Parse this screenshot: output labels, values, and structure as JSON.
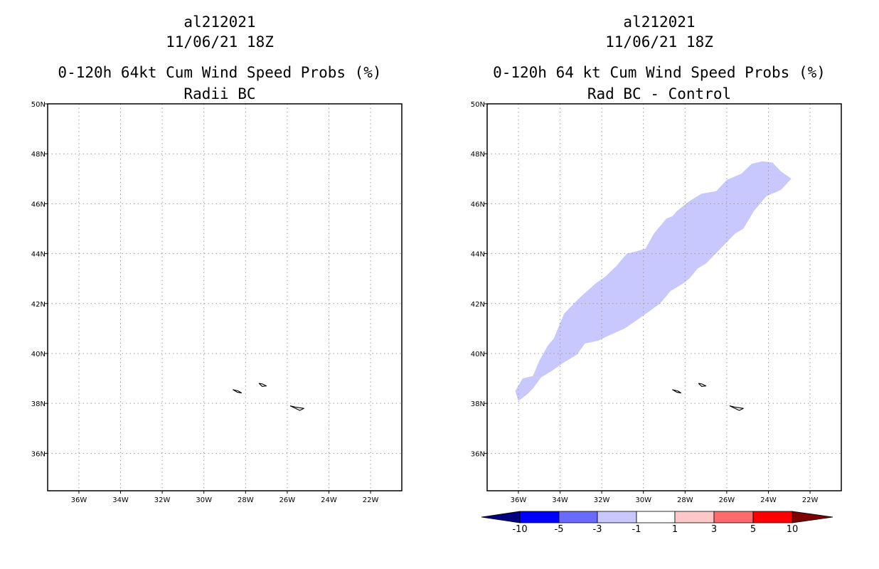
{
  "panels": [
    {
      "title_line1": "al212021",
      "title_line2": "11/06/21 18Z",
      "title_line3": "0-120h 64kt Cum Wind Speed Probs (%)",
      "title_line4": "Radii BC"
    },
    {
      "title_line1": "al212021",
      "title_line2": "11/06/21 18Z",
      "title_line3": "0-120h 64 kt Cum Wind Speed Probs (%)",
      "title_line4": "Rad BC - Control"
    }
  ],
  "map": {
    "lon_range": [
      -37.5,
      -20.5
    ],
    "lat_range": [
      34.5,
      50
    ],
    "lon_ticks": [
      -36,
      -34,
      -32,
      -30,
      -28,
      -26,
      -24,
      -22
    ],
    "lon_labels": [
      "36W",
      "34W",
      "32W",
      "30W",
      "28W",
      "26W",
      "24W",
      "22W"
    ],
    "lat_ticks": [
      36,
      38,
      40,
      42,
      44,
      46,
      48,
      50
    ],
    "lat_labels": [
      "36N",
      "38N",
      "40N",
      "42N",
      "44N",
      "46N",
      "48N",
      "50N"
    ],
    "islands": [
      {
        "name": "flores",
        "lon": [
          -28.6,
          -28.35,
          -28.2,
          -28.4
        ],
        "lat": [
          38.55,
          38.5,
          38.42,
          38.45
        ]
      },
      {
        "name": "faial-pico",
        "lon": [
          -27.35,
          -27.2,
          -27.0,
          -27.2
        ],
        "lat": [
          38.8,
          38.78,
          38.7,
          38.68
        ]
      },
      {
        "name": "sao-miguel",
        "lon": [
          -25.85,
          -25.6,
          -25.2,
          -25.4
        ],
        "lat": [
          37.9,
          37.85,
          37.8,
          37.72
        ]
      }
    ]
  },
  "probability_band": {
    "value_class": "-3 to -1",
    "color": "#c8c8ff",
    "lon": [
      -36.15,
      -35.8,
      -35.3,
      -35.0,
      -34.6,
      -34.3,
      -33.8,
      -33.1,
      -32.3,
      -31.8,
      -31.3,
      -30.8,
      -30.3,
      -29.9,
      -29.5,
      -28.9,
      -28.6,
      -28.4,
      -27.8,
      -27.2,
      -26.5,
      -26.0,
      -25.3,
      -24.8,
      -24.3,
      -23.8,
      -23.4,
      -22.9,
      -23.4,
      -24.1,
      -24.7,
      -25.2,
      -25.6,
      -26.3,
      -27.0,
      -27.4,
      -27.8,
      -28.1,
      -28.7,
      -29.2,
      -29.7,
      -30.2,
      -30.9,
      -31.7,
      -32.2,
      -32.8,
      -33.2,
      -33.8,
      -34.4,
      -34.9,
      -35.3,
      -35.6,
      -36.0
    ],
    "lat": [
      38.5,
      39.0,
      39.1,
      39.7,
      40.3,
      40.6,
      41.6,
      42.2,
      42.8,
      43.1,
      43.5,
      44.0,
      44.1,
      44.2,
      44.8,
      45.4,
      45.5,
      45.7,
      46.1,
      46.4,
      46.5,
      46.95,
      47.2,
      47.6,
      47.7,
      47.65,
      47.3,
      47.0,
      46.55,
      46.3,
      45.7,
      45.0,
      44.8,
      44.2,
      43.6,
      43.4,
      43.0,
      42.8,
      42.5,
      42.0,
      41.7,
      41.4,
      41.0,
      40.7,
      40.5,
      40.4,
      39.95,
      39.65,
      39.3,
      39.05,
      38.6,
      38.35,
      38.1
    ]
  },
  "colorbar": {
    "labels": [
      "-10",
      "-5",
      "-3",
      "-1",
      "1",
      "3",
      "5",
      "10"
    ],
    "colors": [
      "#000080",
      "#0000ff",
      "#6a6aff",
      "#c8c8ff",
      "#ffffff",
      "#ffc8c8",
      "#ff6a6a",
      "#ff0000",
      "#800000"
    ]
  }
}
